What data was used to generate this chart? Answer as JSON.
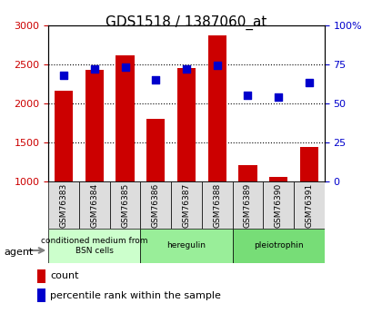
{
  "title": "GDS1518 / 1387060_at",
  "samples": [
    "GSM76383",
    "GSM76384",
    "GSM76385",
    "GSM76386",
    "GSM76387",
    "GSM76388",
    "GSM76389",
    "GSM76390",
    "GSM76391"
  ],
  "counts": [
    2160,
    2430,
    2610,
    1800,
    2450,
    2870,
    1210,
    1060,
    1440
  ],
  "percentile_ranks": [
    68,
    72,
    73,
    65,
    72,
    74,
    55,
    54,
    63
  ],
  "groups": [
    {
      "label": "conditioned medium from\nBSN cells",
      "start": 0,
      "end": 3,
      "color": "#ccffcc"
    },
    {
      "label": "heregulin",
      "start": 3,
      "end": 6,
      "color": "#99ee99"
    },
    {
      "label": "pleiotrophin",
      "start": 6,
      "end": 9,
      "color": "#77dd77"
    }
  ],
  "ylim_left": [
    1000,
    3000
  ],
  "ylim_right": [
    0,
    100
  ],
  "yticks_left": [
    1000,
    1500,
    2000,
    2500,
    3000
  ],
  "yticks_right": [
    0,
    25,
    50,
    75,
    100
  ],
  "ytick_labels_right": [
    "0",
    "25",
    "50",
    "75",
    "100%"
  ],
  "bar_color": "#cc0000",
  "dot_color": "#0000cc",
  "bar_bottom": 1000,
  "bg_color": "#dddddd",
  "plot_bg": "#ffffff",
  "grid_color": "#000000",
  "left_tick_color": "#cc0000",
  "right_tick_color": "#0000cc"
}
